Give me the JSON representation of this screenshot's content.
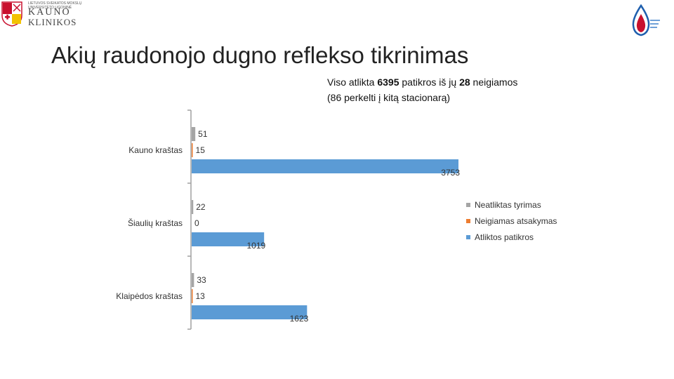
{
  "header": {
    "logo_small_lines": [
      "LIETUVOS SVEIKATOS MOKSLŲ",
      "UNIVERSITETO LIGONINĖ"
    ],
    "logo_big_line1": "KAUNO",
    "logo_big_line2": "KLINIKOS",
    "title": "Akių raudonojo dugno reflekso tikrinimas"
  },
  "subtitle": {
    "line1_prefix": "Viso atlikta ",
    "line1_total": "6395",
    "line1_mid": " patikros iš jų ",
    "line1_negative": "28",
    "line1_suffix": " neigiamos",
    "line2": "(86 perkelti į kitą stacionarą)"
  },
  "chart_data": {
    "type": "bar",
    "orientation": "horizontal",
    "categories": [
      "Kauno kraštas",
      "Šiaulių kraštas",
      "Klaipėdos kraštas"
    ],
    "series": [
      {
        "name": "Neatliktas tyrimas",
        "values": [
          51,
          22,
          33
        ],
        "color": "#a5a5a5"
      },
      {
        "name": "Neigiamas atsakymas",
        "values": [
          15,
          0,
          13
        ],
        "color": "#ed7d31"
      },
      {
        "name": "Atliktos patikros",
        "values": [
          3753,
          1019,
          1623
        ],
        "color": "#5b9bd5"
      }
    ],
    "xlim": [
      0,
      3753
    ],
    "legend_position": "right",
    "grid": false,
    "data_labels": true
  },
  "colors": {
    "axis": "#a0a0a0",
    "logo_red": "#c8102e",
    "logo_blue": "#1f5fae"
  }
}
